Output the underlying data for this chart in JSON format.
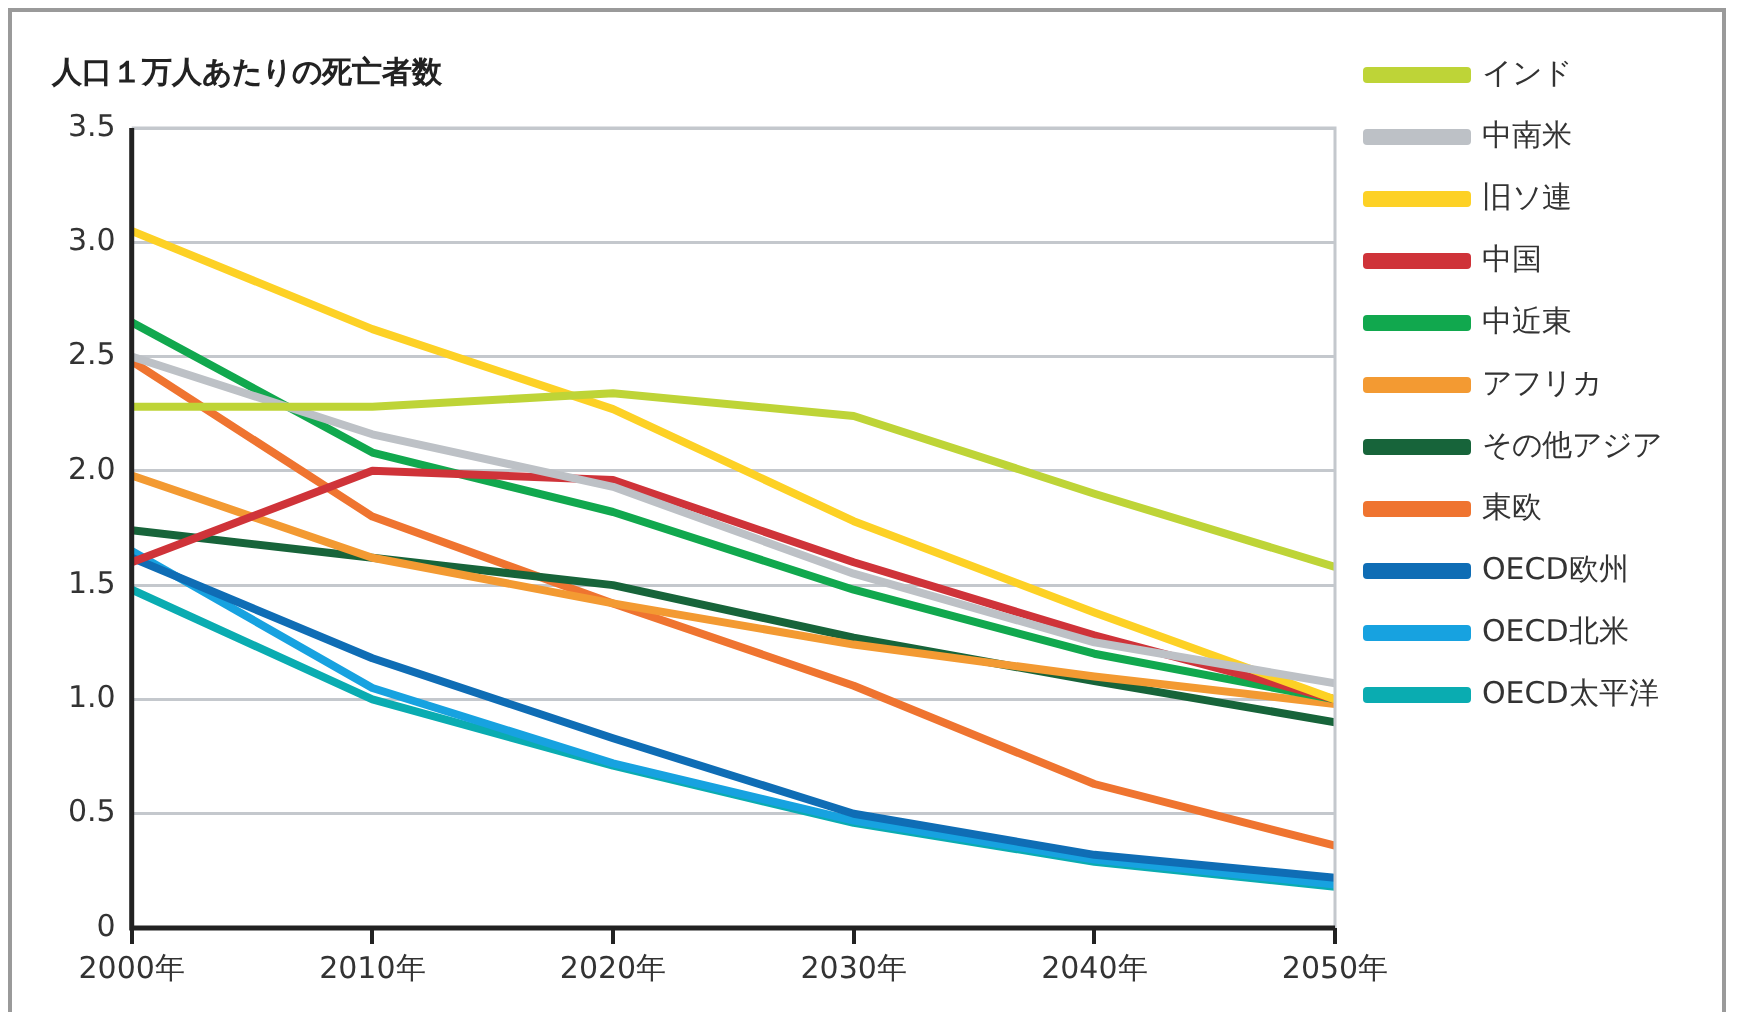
{
  "chart_data": {
    "type": "line",
    "title": "人口１万人あたりの死亡者数",
    "x": [
      2000,
      2010,
      2020,
      2030,
      2040,
      2050
    ],
    "xlim": [
      2000,
      2050
    ],
    "xticks": [
      {
        "value": 2000,
        "label": "2000年"
      },
      {
        "value": 2010,
        "label": "2010年"
      },
      {
        "value": 2020,
        "label": "2020年"
      },
      {
        "value": 2030,
        "label": "2030年"
      },
      {
        "value": 2040,
        "label": "2040年"
      },
      {
        "value": 2050,
        "label": "2050年"
      }
    ],
    "ylim": [
      0,
      3.5
    ],
    "yticks": [
      0,
      {
        "value": 0.5,
        "label": "0.5"
      },
      {
        "value": 1,
        "label": "1.0"
      },
      {
        "value": 1.5,
        "label": "1.5"
      },
      {
        "value": 2,
        "label": "2.0"
      },
      {
        "value": 2.5,
        "label": "2.5"
      },
      {
        "value": 3,
        "label": "3.0"
      },
      {
        "value": 3.5,
        "label": "3.5"
      }
    ],
    "grid": "y",
    "legend": "right",
    "marker": "none",
    "line_style": "solid",
    "series": [
      {
        "name": "インド",
        "color": "#bed437",
        "values": [
          2.28,
          2.28,
          2.34,
          2.24,
          1.9,
          1.58
        ]
      },
      {
        "name": "中南米",
        "color": "#bdc1c6",
        "values": [
          2.5,
          2.16,
          1.93,
          1.55,
          1.25,
          1.07
        ]
      },
      {
        "name": "旧ソ連",
        "color": "#fdd125",
        "values": [
          3.05,
          2.62,
          2.27,
          1.78,
          1.38,
          1.0
        ]
      },
      {
        "name": "中国",
        "color": "#cf3339",
        "values": [
          1.6,
          2.0,
          1.96,
          1.6,
          1.28,
          1.0
        ]
      },
      {
        "name": "中近東",
        "color": "#11a84e",
        "values": [
          2.65,
          2.08,
          1.82,
          1.48,
          1.2,
          1.0
        ]
      },
      {
        "name": "アフリカ",
        "color": "#f39a32",
        "values": [
          1.98,
          1.62,
          1.42,
          1.24,
          1.1,
          0.98
        ]
      },
      {
        "name": "その他アジア",
        "color": "#17643a",
        "values": [
          1.74,
          1.62,
          1.5,
          1.27,
          1.08,
          0.9
        ]
      },
      {
        "name": "東欧",
        "color": "#ef7430",
        "values": [
          2.48,
          1.8,
          1.42,
          1.06,
          0.63,
          0.36
        ]
      },
      {
        "name": "OECD欧州",
        "color": "#0f6db5",
        "values": [
          1.62,
          1.18,
          0.83,
          0.5,
          0.32,
          0.22
        ]
      },
      {
        "name": "OECD北米",
        "color": "#17a2e0",
        "values": [
          1.65,
          1.05,
          0.72,
          0.47,
          0.3,
          0.19
        ]
      },
      {
        "name": "OECD太平洋",
        "color": "#0aacb1",
        "values": [
          1.48,
          1.0,
          0.71,
          0.46,
          0.29,
          0.18
        ]
      }
    ]
  }
}
